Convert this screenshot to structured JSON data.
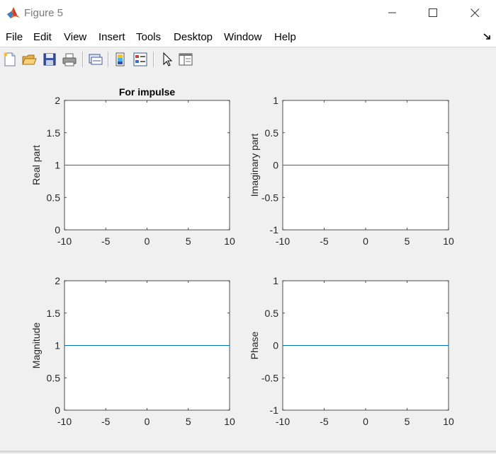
{
  "window": {
    "title": "Figure 5",
    "icon": "matlab-logo-icon"
  },
  "menu": {
    "items": [
      {
        "label": "File"
      },
      {
        "label": "Edit"
      },
      {
        "label": "View"
      },
      {
        "label": "Insert"
      },
      {
        "label": "Tools"
      },
      {
        "label": "Desktop"
      },
      {
        "label": "Window"
      },
      {
        "label": "Help"
      }
    ]
  },
  "toolbar": {
    "buttons": [
      {
        "icon": "new-figure-icon"
      },
      {
        "icon": "open-file-icon"
      },
      {
        "icon": "save-icon"
      },
      {
        "icon": "print-icon"
      },
      {
        "icon": "link-plot-icon"
      },
      {
        "icon": "colorbar-icon"
      },
      {
        "icon": "legend-icon"
      },
      {
        "icon": "pointer-icon"
      },
      {
        "icon": "property-inspector-icon"
      }
    ]
  },
  "chart_data": [
    {
      "type": "line",
      "title": "For impulse",
      "xlabel": "",
      "ylabel": "Real part",
      "xlim": [
        -10,
        10
      ],
      "ylim": [
        0,
        2
      ],
      "xticks": [
        "-10",
        "-5",
        "0",
        "5",
        "10"
      ],
      "yticks": [
        "0",
        "0.5",
        "1",
        "1.5",
        "2"
      ],
      "series": [
        {
          "x": [
            -10,
            10
          ],
          "y": [
            1,
            1
          ],
          "color": "#0072bd"
        }
      ],
      "grid": false
    },
    {
      "type": "line",
      "title": "",
      "xlabel": "",
      "ylabel": "Imaginary part",
      "xlim": [
        -10,
        10
      ],
      "ylim": [
        -1,
        1
      ],
      "xticks": [
        "-10",
        "-5",
        "0",
        "5",
        "10"
      ],
      "yticks": [
        "-1",
        "-0.5",
        "0",
        "0.5",
        "1"
      ],
      "series": [
        {
          "x": [
            -10,
            10
          ],
          "y": [
            0,
            0
          ],
          "color": "#0072bd"
        }
      ],
      "grid": false
    },
    {
      "type": "line",
      "title": "",
      "xlabel": "",
      "ylabel": "Magnitude",
      "xlim": [
        -10,
        10
      ],
      "ylim": [
        0,
        2
      ],
      "xticks": [
        "-10",
        "-5",
        "0",
        "5",
        "10"
      ],
      "yticks": [
        "0",
        "0.5",
        "1",
        "1.5",
        "2"
      ],
      "series": [
        {
          "x": [
            -10,
            10
          ],
          "y": [
            1,
            1
          ],
          "color": "#0072bd"
        }
      ],
      "grid": false
    },
    {
      "type": "line",
      "title": "",
      "xlabel": "",
      "ylabel": "Phase",
      "xlim": [
        -10,
        10
      ],
      "ylim": [
        -1,
        1
      ],
      "xticks": [
        "-10",
        "-5",
        "0",
        "5",
        "10"
      ],
      "yticks": [
        "-1",
        "-0.5",
        "0",
        "0.5",
        "1"
      ],
      "series": [
        {
          "x": [
            -10,
            10
          ],
          "y": [
            0,
            0
          ],
          "color": "#0072bd"
        }
      ],
      "grid": false
    }
  ]
}
